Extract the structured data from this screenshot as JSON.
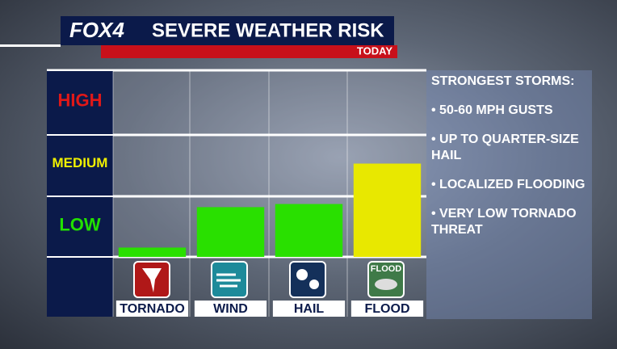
{
  "chart_data": {
    "type": "bar",
    "brand": "FOX4",
    "title": "SEVERE WEATHER RISK",
    "subtitle": "TODAY",
    "categories": [
      "TORNADO",
      "WIND",
      "HAIL",
      "FLOOD"
    ],
    "values": [
      0.15,
      0.8,
      0.85,
      1.5
    ],
    "colors": [
      "#29e000",
      "#29e000",
      "#29e000",
      "#e8e800"
    ],
    "ylim": [
      0,
      3
    ],
    "yticks": [
      {
        "value": 0.5,
        "label": "LOW"
      },
      {
        "value": 1.5,
        "label": "MEDIUM"
      },
      {
        "value": 2.5,
        "label": "HIGH"
      }
    ],
    "ytick_colors": [
      "#22e000",
      "#f0f000",
      "#e01818"
    ],
    "flood_icon_label": "FLOOD",
    "sidebar": {
      "title": "STRONGEST STORMS:",
      "items": [
        "• 50-60 MPH GUSTS",
        "• UP TO QUARTER-SIZE HAIL",
        "• LOCALIZED FLOODING",
        "• VERY LOW TORNADO THREAT"
      ]
    }
  }
}
